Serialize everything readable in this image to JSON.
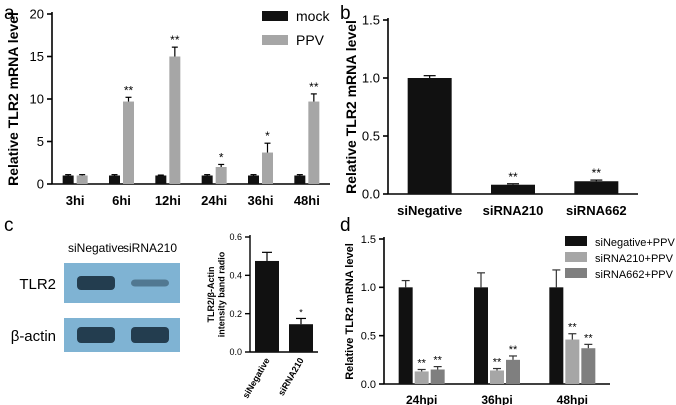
{
  "panels": {
    "a": "a",
    "b": "b",
    "c": "c",
    "d": "d"
  },
  "blot": {
    "lanes": [
      "siNegative",
      "siRNA210"
    ],
    "rows": [
      "TLR2",
      "β-actin"
    ],
    "band_intensity": {
      "TLR2": [
        0.9,
        0.45
      ],
      "β-actin": [
        0.9,
        0.9
      ]
    }
  },
  "colors": {
    "black": "#111111",
    "gray": "#a6a6a6",
    "dark_gray": "#7f7f7f",
    "blot_bg": "#7fb3d3",
    "band": "#1a3040"
  },
  "chart_data": [
    {
      "id": "a",
      "type": "bar",
      "ylabel": "Relative TLR2 mRNA level",
      "xlabel": "",
      "categories": [
        "3hi",
        "6hi",
        "12hi",
        "24hi",
        "36hi",
        "48hi"
      ],
      "ylim": [
        0,
        20
      ],
      "yticks": [
        0,
        5,
        10,
        15,
        20
      ],
      "series": [
        {
          "name": "mock",
          "values": [
            1.0,
            1.0,
            1.0,
            1.0,
            1.0,
            1.0
          ],
          "errors": [
            0.1,
            0.1,
            0.05,
            0.1,
            0.1,
            0.1
          ],
          "sig": [
            "",
            "",
            "",
            "",
            "",
            ""
          ]
        },
        {
          "name": "PPV",
          "values": [
            1.0,
            9.7,
            15.0,
            2.0,
            3.7,
            9.7
          ],
          "errors": [
            0.1,
            0.5,
            1.1,
            0.3,
            1.1,
            0.9
          ],
          "sig": [
            "",
            "**",
            "**",
            "*",
            "*",
            "**"
          ]
        }
      ],
      "legend": "top-right"
    },
    {
      "id": "b",
      "type": "bar",
      "ylabel": "Relative TLR2 mRNA level",
      "xlabel": "",
      "categories": [
        "siNegative",
        "siRNA210",
        "siRNA662"
      ],
      "ylim": [
        0,
        1.5
      ],
      "yticks": [
        0.0,
        0.5,
        1.0,
        1.5
      ],
      "series": [
        {
          "values": [
            1.0,
            0.08,
            0.11
          ],
          "errors": [
            0.02,
            0.008,
            0.01
          ],
          "sig": [
            "",
            "**",
            "**"
          ]
        }
      ]
    },
    {
      "id": "c",
      "type": "bar",
      "ylabel": "TLR2/β-Actin intensity band radio",
      "xlabel": "",
      "categories": [
        "siNegative",
        "siRNA210"
      ],
      "ylim": [
        0,
        0.6
      ],
      "yticks": [
        0.0,
        0.2,
        0.4,
        0.6
      ],
      "series": [
        {
          "values": [
            0.475,
            0.145
          ],
          "errors": [
            0.045,
            0.03
          ],
          "sig": [
            "",
            "*"
          ]
        }
      ]
    },
    {
      "id": "d",
      "type": "bar",
      "ylabel": "Relative TLR2 mRNA level",
      "xlabel": "",
      "categories": [
        "24hpi",
        "36hpi",
        "48hpi"
      ],
      "ylim": [
        0,
        1.5
      ],
      "yticks": [
        0.0,
        0.5,
        1.0,
        1.5
      ],
      "series": [
        {
          "name": "siNegative+PPV",
          "values": [
            1.0,
            1.0,
            1.0
          ],
          "errors": [
            0.07,
            0.15,
            0.18
          ],
          "sig": [
            "",
            "",
            ""
          ]
        },
        {
          "name": "siRNA210+PPV",
          "values": [
            0.13,
            0.14,
            0.46
          ],
          "errors": [
            0.02,
            0.02,
            0.06
          ],
          "sig": [
            "**",
            "**",
            "**"
          ]
        },
        {
          "name": "siRNA662+PPV",
          "values": [
            0.15,
            0.25,
            0.37
          ],
          "errors": [
            0.03,
            0.04,
            0.04
          ],
          "sig": [
            "**",
            "**",
            "**"
          ]
        }
      ],
      "legend": "top-right"
    }
  ]
}
